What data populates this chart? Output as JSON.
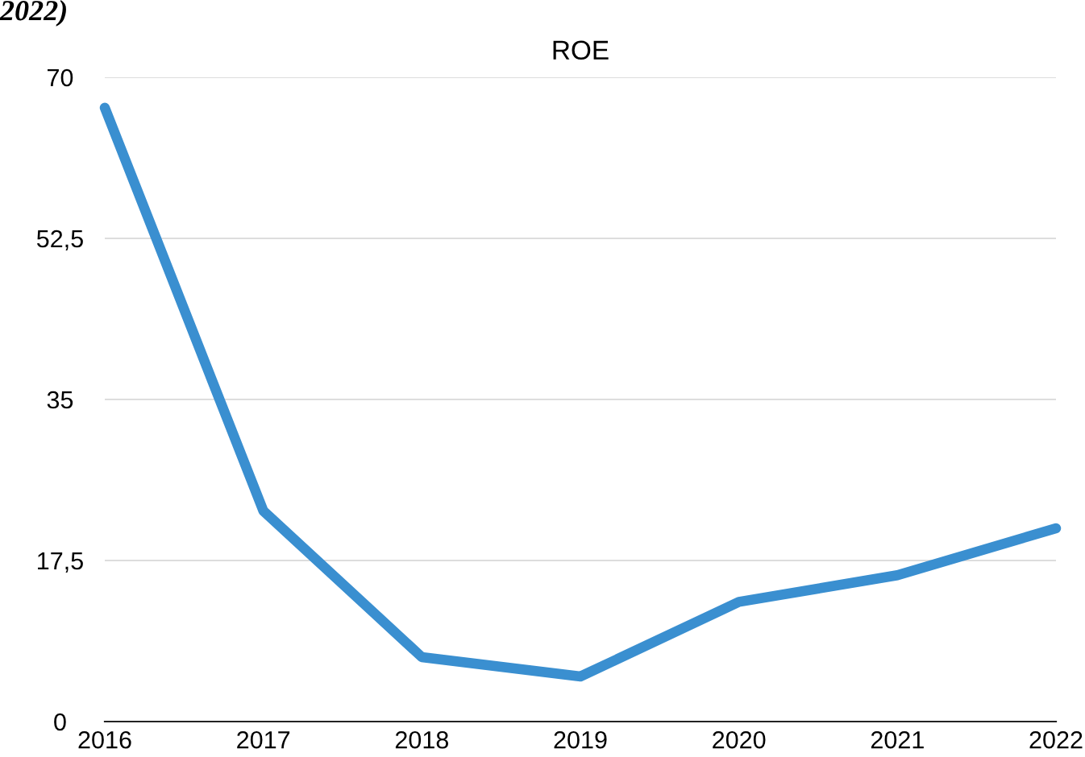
{
  "chart_data": {
    "type": "line",
    "title": "ROE",
    "annotations": [
      "2022)"
    ],
    "categories": [
      "2016",
      "2017",
      "2018",
      "2019",
      "2020",
      "2021",
      "2022"
    ],
    "series": [
      {
        "color": "#3a8fd0",
        "values": [
          66.7,
          22.9,
          7.0,
          4.9,
          13.0,
          15.9,
          21.0
        ]
      }
    ],
    "ylim": [
      0,
      70
    ],
    "yticks": [
      0,
      {
        "value": 17.5,
        "label": "17,5"
      },
      35,
      {
        "value": 52.5,
        "label": "52,5"
      },
      70
    ],
    "grid": "y",
    "legend": false,
    "marker": "none",
    "line_style": "solid"
  }
}
